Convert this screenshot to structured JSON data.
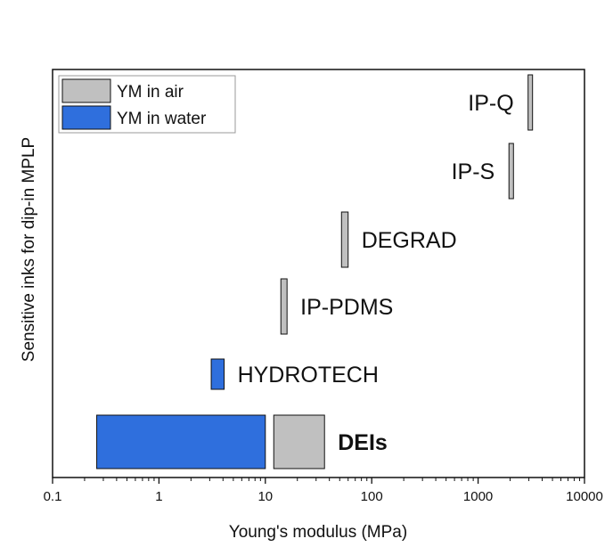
{
  "chart_data": {
    "type": "bar",
    "orientation": "horizontal-range",
    "title": "",
    "xlabel": "Young's modulus (MPa)",
    "ylabel": "Sensitive inks for dip-in MPLP",
    "xscale": "log",
    "xlim": [
      0.1,
      10000
    ],
    "xticks": [
      {
        "value": 0.1,
        "label": "0.1"
      },
      {
        "value": 1,
        "label": "1"
      },
      {
        "value": 10,
        "label": "10"
      },
      {
        "value": 100,
        "label": "100"
      },
      {
        "value": 1000,
        "label": "1000"
      },
      {
        "value": 10000,
        "label": "10000"
      }
    ],
    "legend": {
      "position": "top-left",
      "entries": [
        {
          "label": "YM in air",
          "color": "#c0c0c0"
        },
        {
          "label": "YM in water",
          "color": "#2f6fdd"
        }
      ]
    },
    "colors": {
      "air": "#c0c0c0",
      "water": "#2f6fdd"
    },
    "bars": [
      {
        "label": "DEIs",
        "bold": true,
        "label_side": "right",
        "ranges": [
          {
            "condition": "water",
            "min": 0.26,
            "max": 10
          },
          {
            "condition": "air",
            "min": 12,
            "max": 36
          }
        ]
      },
      {
        "label": "HYDROTECH",
        "bold": false,
        "label_side": "right",
        "ranges": [
          {
            "condition": "water",
            "min": 3.1,
            "max": 4.1
          }
        ]
      },
      {
        "label": "IP-PDMS",
        "bold": false,
        "label_side": "right",
        "ranges": [
          {
            "condition": "air",
            "min": 14,
            "max": 16
          }
        ]
      },
      {
        "label": "DEGRAD",
        "bold": false,
        "label_side": "right",
        "ranges": [
          {
            "condition": "air",
            "min": 52,
            "max": 60
          }
        ]
      },
      {
        "label": "IP-S",
        "bold": false,
        "label_side": "left",
        "ranges": [
          {
            "condition": "air",
            "min": 1950,
            "max": 2150
          }
        ]
      },
      {
        "label": "IP-Q",
        "bold": false,
        "label_side": "left",
        "ranges": [
          {
            "condition": "air",
            "min": 2950,
            "max": 3150
          }
        ]
      }
    ]
  }
}
